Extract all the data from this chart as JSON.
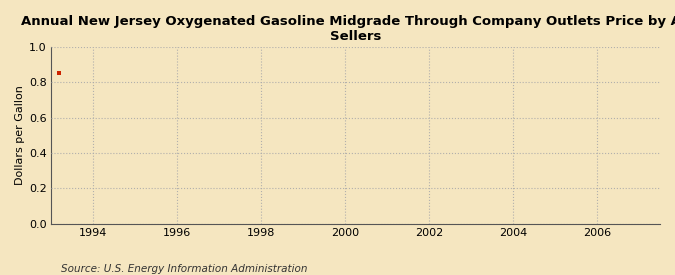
{
  "title": "Annual New Jersey Oxygenated Gasoline Midgrade Through Company Outlets Price by All Sellers",
  "ylabel": "Dollars per Gallon",
  "source": "Source: U.S. Energy Information Administration",
  "data_x": [
    1993.2
  ],
  "data_y": [
    0.855
  ],
  "data_color": "#cc2200",
  "xlim": [
    1993,
    2007.5
  ],
  "ylim": [
    0.0,
    1.0
  ],
  "xticks": [
    1994,
    1996,
    1998,
    2000,
    2002,
    2004,
    2006
  ],
  "yticks": [
    0.0,
    0.2,
    0.4,
    0.6,
    0.8,
    1.0
  ],
  "background_color": "#f5e6c0",
  "grid_color": "#aaaaaa",
  "title_fontsize": 9.5,
  "label_fontsize": 8,
  "tick_fontsize": 8,
  "source_fontsize": 7.5
}
